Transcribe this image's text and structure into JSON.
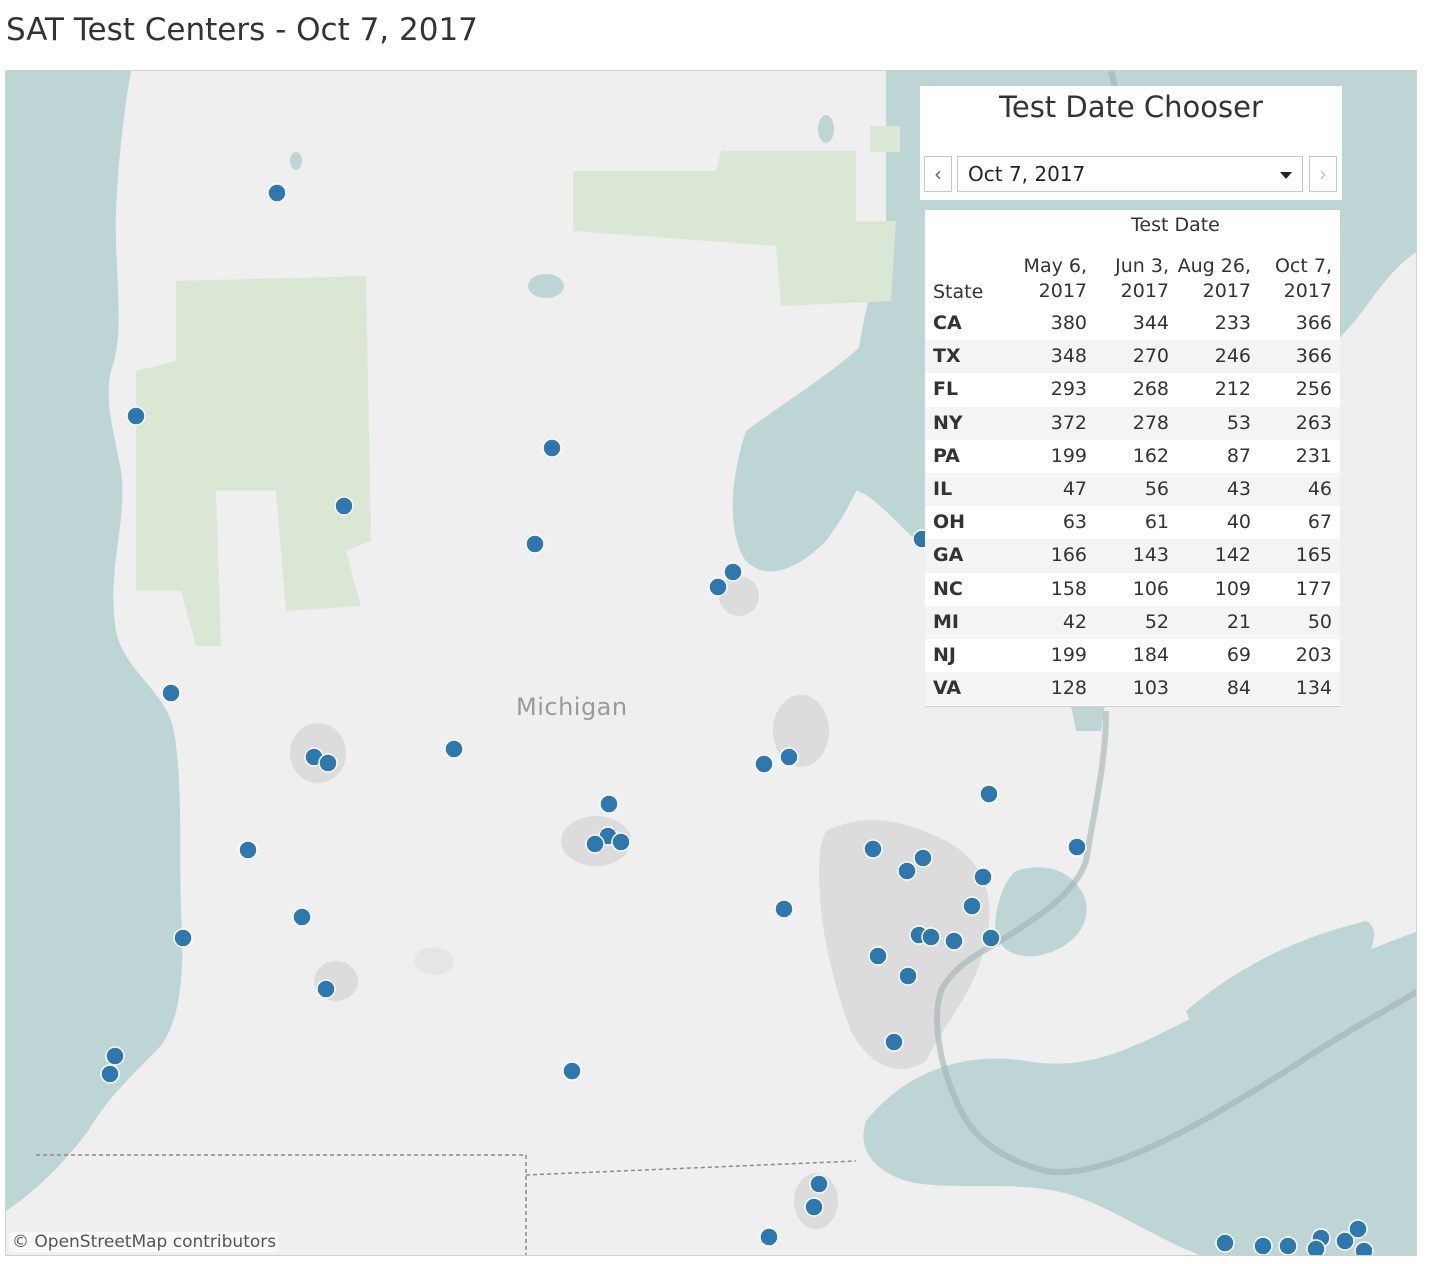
{
  "title": "SAT Test Centers - Oct 7, 2017",
  "map": {
    "region_label": "Michigan",
    "attribution": "© OpenStreetMap contributors",
    "colors": {
      "water": "#bed5d5",
      "land": "#efefef",
      "park": "#dae7d5",
      "urban": "#dcdcdc",
      "marker": "#2e78b0"
    },
    "marker_icon": "circle-marker"
  },
  "chooser": {
    "title": "Test Date Chooser",
    "selected_date": "Oct 7, 2017",
    "prev_icon": "chevron-left-icon",
    "next_icon": "chevron-right-icon"
  },
  "table": {
    "group_header": "Test Date",
    "state_header": "State",
    "columns": [
      {
        "l1": "May 6,",
        "l2": "2017"
      },
      {
        "l1": "Jun 3,",
        "l2": "2017"
      },
      {
        "l1": "Aug 26,",
        "l2": "2017"
      },
      {
        "l1": "Oct 7,",
        "l2": "2017"
      }
    ],
    "rows": [
      {
        "state": "CA",
        "v": [
          "380",
          "344",
          "233",
          "366"
        ]
      },
      {
        "state": "TX",
        "v": [
          "348",
          "270",
          "246",
          "366"
        ]
      },
      {
        "state": "FL",
        "v": [
          "293",
          "268",
          "212",
          "256"
        ]
      },
      {
        "state": "NY",
        "v": [
          "372",
          "278",
          "53",
          "263"
        ]
      },
      {
        "state": "PA",
        "v": [
          "199",
          "162",
          "87",
          "231"
        ]
      },
      {
        "state": "IL",
        "v": [
          "47",
          "56",
          "43",
          "46"
        ]
      },
      {
        "state": "OH",
        "v": [
          "63",
          "61",
          "40",
          "67"
        ]
      },
      {
        "state": "GA",
        "v": [
          "166",
          "143",
          "142",
          "165"
        ]
      },
      {
        "state": "NC",
        "v": [
          "158",
          "106",
          "109",
          "177"
        ]
      },
      {
        "state": "MI",
        "v": [
          "42",
          "52",
          "21",
          "50"
        ]
      },
      {
        "state": "NJ",
        "v": [
          "199",
          "184",
          "69",
          "203"
        ]
      },
      {
        "state": "VA",
        "v": [
          "128",
          "103",
          "84",
          "134"
        ]
      }
    ]
  }
}
